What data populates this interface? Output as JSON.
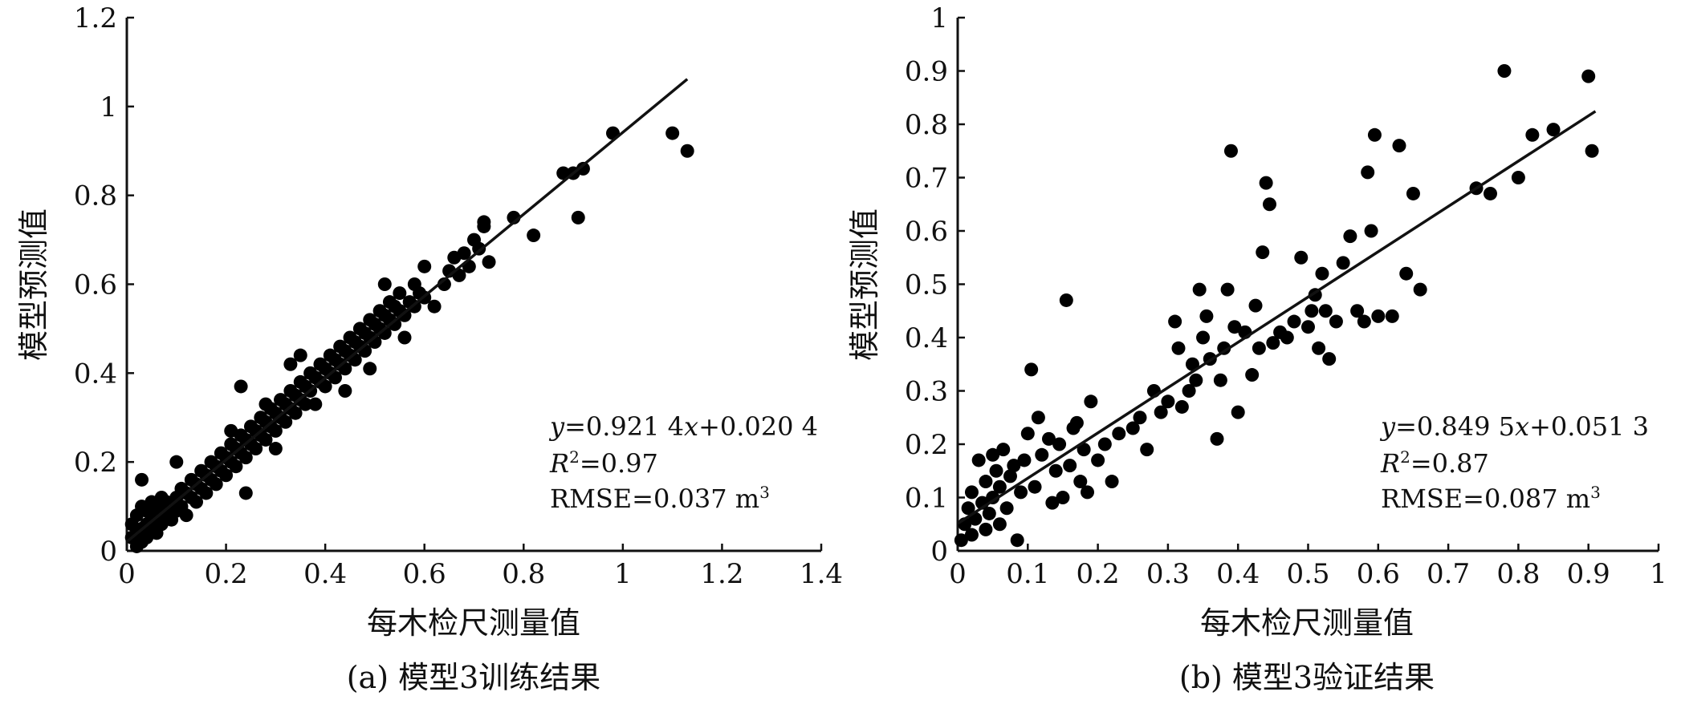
{
  "chart_data": [
    {
      "type": "scatter",
      "caption": "(a) 模型3训练结果",
      "xlabel": "每木检尺测量值",
      "ylabel": "模型预测值",
      "xlim": [
        0,
        1.4
      ],
      "ylim": [
        0,
        1.2
      ],
      "xticks": [
        "0",
        "0.2",
        "0.4",
        "0.6",
        "0.8",
        "1",
        "1.2",
        "1.4"
      ],
      "yticks": [
        "0",
        "0.2",
        "0.4",
        "0.6",
        "0.8",
        "1",
        "1.2"
      ],
      "fit": {
        "slope": 0.9214,
        "intercept": 0.0204,
        "x_range": [
          0,
          1.13
        ]
      },
      "annotation": {
        "eq_prefix": "y",
        "eq_mid": "=0.921 4",
        "eq_x": "x",
        "eq_tail": "+0.020 4",
        "r2_label": "R",
        "r2_sup": "2",
        "r2_value": "=0.97",
        "rmse": "RMSE=0.037 m",
        "rmse_sup": "3"
      },
      "points": [
        [
          0.01,
          0.03
        ],
        [
          0.01,
          0.06
        ],
        [
          0.02,
          0.01
        ],
        [
          0.02,
          0.04
        ],
        [
          0.02,
          0.08
        ],
        [
          0.03,
          0.02
        ],
        [
          0.03,
          0.05
        ],
        [
          0.03,
          0.1
        ],
        [
          0.03,
          0.16
        ],
        [
          0.04,
          0.03
        ],
        [
          0.04,
          0.06
        ],
        [
          0.04,
          0.09
        ],
        [
          0.05,
          0.05
        ],
        [
          0.05,
          0.08
        ],
        [
          0.05,
          0.11
        ],
        [
          0.06,
          0.04
        ],
        [
          0.06,
          0.07
        ],
        [
          0.06,
          0.1
        ],
        [
          0.07,
          0.06
        ],
        [
          0.07,
          0.09
        ],
        [
          0.07,
          0.12
        ],
        [
          0.08,
          0.08
        ],
        [
          0.08,
          0.11
        ],
        [
          0.09,
          0.07
        ],
        [
          0.09,
          0.1
        ],
        [
          0.1,
          0.09
        ],
        [
          0.1,
          0.12
        ],
        [
          0.1,
          0.2
        ],
        [
          0.11,
          0.1
        ],
        [
          0.11,
          0.14
        ],
        [
          0.12,
          0.08
        ],
        [
          0.12,
          0.13
        ],
        [
          0.13,
          0.12
        ],
        [
          0.13,
          0.16
        ],
        [
          0.14,
          0.11
        ],
        [
          0.14,
          0.15
        ],
        [
          0.15,
          0.14
        ],
        [
          0.15,
          0.18
        ],
        [
          0.16,
          0.13
        ],
        [
          0.16,
          0.17
        ],
        [
          0.17,
          0.16
        ],
        [
          0.17,
          0.2
        ],
        [
          0.18,
          0.15
        ],
        [
          0.18,
          0.19
        ],
        [
          0.19,
          0.18
        ],
        [
          0.19,
          0.22
        ],
        [
          0.2,
          0.17
        ],
        [
          0.2,
          0.21
        ],
        [
          0.21,
          0.2
        ],
        [
          0.21,
          0.24
        ],
        [
          0.21,
          0.27
        ],
        [
          0.22,
          0.19
        ],
        [
          0.22,
          0.23
        ],
        [
          0.23,
          0.22
        ],
        [
          0.23,
          0.26
        ],
        [
          0.23,
          0.37
        ],
        [
          0.24,
          0.13
        ],
        [
          0.24,
          0.21
        ],
        [
          0.24,
          0.25
        ],
        [
          0.25,
          0.24
        ],
        [
          0.25,
          0.28
        ],
        [
          0.26,
          0.23
        ],
        [
          0.26,
          0.27
        ],
        [
          0.27,
          0.26
        ],
        [
          0.27,
          0.3
        ],
        [
          0.28,
          0.25
        ],
        [
          0.28,
          0.29
        ],
        [
          0.28,
          0.33
        ],
        [
          0.29,
          0.28
        ],
        [
          0.29,
          0.32
        ],
        [
          0.3,
          0.23
        ],
        [
          0.3,
          0.27
        ],
        [
          0.3,
          0.31
        ],
        [
          0.31,
          0.3
        ],
        [
          0.31,
          0.34
        ],
        [
          0.32,
          0.29
        ],
        [
          0.32,
          0.33
        ],
        [
          0.33,
          0.32
        ],
        [
          0.33,
          0.36
        ],
        [
          0.33,
          0.42
        ],
        [
          0.34,
          0.31
        ],
        [
          0.34,
          0.35
        ],
        [
          0.35,
          0.34
        ],
        [
          0.35,
          0.38
        ],
        [
          0.35,
          0.44
        ],
        [
          0.36,
          0.33
        ],
        [
          0.36,
          0.37
        ],
        [
          0.37,
          0.36
        ],
        [
          0.37,
          0.4
        ],
        [
          0.38,
          0.33
        ],
        [
          0.38,
          0.39
        ],
        [
          0.39,
          0.38
        ],
        [
          0.39,
          0.42
        ],
        [
          0.4,
          0.37
        ],
        [
          0.4,
          0.41
        ],
        [
          0.41,
          0.4
        ],
        [
          0.41,
          0.44
        ],
        [
          0.42,
          0.39
        ],
        [
          0.42,
          0.43
        ],
        [
          0.43,
          0.42
        ],
        [
          0.43,
          0.46
        ],
        [
          0.44,
          0.36
        ],
        [
          0.44,
          0.41
        ],
        [
          0.44,
          0.45
        ],
        [
          0.45,
          0.44
        ],
        [
          0.45,
          0.48
        ],
        [
          0.46,
          0.43
        ],
        [
          0.46,
          0.47
        ],
        [
          0.47,
          0.46
        ],
        [
          0.47,
          0.5
        ],
        [
          0.48,
          0.45
        ],
        [
          0.48,
          0.49
        ],
        [
          0.49,
          0.41
        ],
        [
          0.49,
          0.48
        ],
        [
          0.49,
          0.52
        ],
        [
          0.5,
          0.47
        ],
        [
          0.5,
          0.51
        ],
        [
          0.51,
          0.5
        ],
        [
          0.51,
          0.54
        ],
        [
          0.52,
          0.49
        ],
        [
          0.52,
          0.53
        ],
        [
          0.52,
          0.6
        ],
        [
          0.53,
          0.52
        ],
        [
          0.53,
          0.56
        ],
        [
          0.54,
          0.51
        ],
        [
          0.54,
          0.55
        ],
        [
          0.55,
          0.54
        ],
        [
          0.55,
          0.58
        ],
        [
          0.56,
          0.48
        ],
        [
          0.56,
          0.53
        ],
        [
          0.57,
          0.56
        ],
        [
          0.58,
          0.55
        ],
        [
          0.58,
          0.6
        ],
        [
          0.59,
          0.58
        ],
        [
          0.6,
          0.57
        ],
        [
          0.6,
          0.64
        ],
        [
          0.62,
          0.55
        ],
        [
          0.64,
          0.6
        ],
        [
          0.65,
          0.63
        ],
        [
          0.66,
          0.66
        ],
        [
          0.67,
          0.62
        ],
        [
          0.68,
          0.67
        ],
        [
          0.69,
          0.64
        ],
        [
          0.7,
          0.7
        ],
        [
          0.71,
          0.68
        ],
        [
          0.72,
          0.73
        ],
        [
          0.72,
          0.74
        ],
        [
          0.73,
          0.65
        ],
        [
          0.78,
          0.75
        ],
        [
          0.82,
          0.71
        ],
        [
          0.88,
          0.85
        ],
        [
          0.9,
          0.85
        ],
        [
          0.91,
          0.75
        ],
        [
          0.92,
          0.86
        ],
        [
          0.98,
          0.94
        ],
        [
          1.1,
          0.94
        ],
        [
          1.13,
          0.9
        ]
      ]
    },
    {
      "type": "scatter",
      "caption": "(b) 模型3验证结果",
      "xlabel": "每木检尺测量值",
      "ylabel": "模型预测值",
      "xlim": [
        0,
        1
      ],
      "ylim": [
        0,
        1
      ],
      "xticks": [
        "0",
        "0.1",
        "0.2",
        "0.3",
        "0.4",
        "0.5",
        "0.6",
        "0.7",
        "0.8",
        "0.9",
        "1"
      ],
      "yticks": [
        "0",
        "0.1",
        "0.2",
        "0.3",
        "0.4",
        "0.5",
        "0.6",
        "0.7",
        "0.8",
        "0.9",
        "1"
      ],
      "fit": {
        "slope": 0.8495,
        "intercept": 0.0513,
        "x_range": [
          0,
          0.91
        ]
      },
      "annotation": {
        "eq_prefix": "y",
        "eq_mid": "=0.849 5",
        "eq_x": "x",
        "eq_tail": "+0.051 3",
        "r2_label": "R",
        "r2_sup": "2",
        "r2_value": "=0.87",
        "rmse": "RMSE=0.087 m",
        "rmse_sup": "3"
      },
      "points": [
        [
          0.005,
          0.02
        ],
        [
          0.01,
          0.05
        ],
        [
          0.015,
          0.08
        ],
        [
          0.02,
          0.03
        ],
        [
          0.02,
          0.11
        ],
        [
          0.025,
          0.06
        ],
        [
          0.03,
          0.17
        ],
        [
          0.035,
          0.09
        ],
        [
          0.04,
          0.04
        ],
        [
          0.04,
          0.13
        ],
        [
          0.045,
          0.07
        ],
        [
          0.05,
          0.18
        ],
        [
          0.05,
          0.1
        ],
        [
          0.055,
          0.15
        ],
        [
          0.06,
          0.05
        ],
        [
          0.06,
          0.12
        ],
        [
          0.065,
          0.19
        ],
        [
          0.07,
          0.08
        ],
        [
          0.075,
          0.14
        ],
        [
          0.08,
          0.16
        ],
        [
          0.085,
          0.02
        ],
        [
          0.09,
          0.11
        ],
        [
          0.095,
          0.17
        ],
        [
          0.1,
          0.22
        ],
        [
          0.105,
          0.34
        ],
        [
          0.11,
          0.12
        ],
        [
          0.115,
          0.25
        ],
        [
          0.12,
          0.18
        ],
        [
          0.13,
          0.21
        ],
        [
          0.135,
          0.09
        ],
        [
          0.14,
          0.15
        ],
        [
          0.145,
          0.2
        ],
        [
          0.15,
          0.1
        ],
        [
          0.155,
          0.47
        ],
        [
          0.16,
          0.16
        ],
        [
          0.165,
          0.23
        ],
        [
          0.17,
          0.24
        ],
        [
          0.175,
          0.13
        ],
        [
          0.18,
          0.19
        ],
        [
          0.185,
          0.11
        ],
        [
          0.19,
          0.28
        ],
        [
          0.2,
          0.17
        ],
        [
          0.21,
          0.2
        ],
        [
          0.22,
          0.13
        ],
        [
          0.23,
          0.22
        ],
        [
          0.25,
          0.23
        ],
        [
          0.26,
          0.25
        ],
        [
          0.27,
          0.19
        ],
        [
          0.28,
          0.3
        ],
        [
          0.29,
          0.26
        ],
        [
          0.3,
          0.28
        ],
        [
          0.31,
          0.43
        ],
        [
          0.315,
          0.38
        ],
        [
          0.32,
          0.27
        ],
        [
          0.33,
          0.3
        ],
        [
          0.335,
          0.35
        ],
        [
          0.34,
          0.32
        ],
        [
          0.345,
          0.49
        ],
        [
          0.35,
          0.4
        ],
        [
          0.355,
          0.44
        ],
        [
          0.36,
          0.36
        ],
        [
          0.37,
          0.21
        ],
        [
          0.375,
          0.32
        ],
        [
          0.38,
          0.38
        ],
        [
          0.385,
          0.49
        ],
        [
          0.39,
          0.75
        ],
        [
          0.395,
          0.42
        ],
        [
          0.4,
          0.26
        ],
        [
          0.41,
          0.41
        ],
        [
          0.42,
          0.33
        ],
        [
          0.425,
          0.46
        ],
        [
          0.43,
          0.38
        ],
        [
          0.435,
          0.56
        ],
        [
          0.44,
          0.69
        ],
        [
          0.445,
          0.65
        ],
        [
          0.45,
          0.39
        ],
        [
          0.46,
          0.41
        ],
        [
          0.47,
          0.4
        ],
        [
          0.48,
          0.43
        ],
        [
          0.49,
          0.55
        ],
        [
          0.5,
          0.42
        ],
        [
          0.505,
          0.45
        ],
        [
          0.51,
          0.48
        ],
        [
          0.515,
          0.38
        ],
        [
          0.52,
          0.52
        ],
        [
          0.525,
          0.45
        ],
        [
          0.53,
          0.36
        ],
        [
          0.54,
          0.43
        ],
        [
          0.55,
          0.54
        ],
        [
          0.56,
          0.59
        ],
        [
          0.57,
          0.45
        ],
        [
          0.58,
          0.43
        ],
        [
          0.585,
          0.71
        ],
        [
          0.59,
          0.6
        ],
        [
          0.595,
          0.78
        ],
        [
          0.6,
          0.44
        ],
        [
          0.62,
          0.44
        ],
        [
          0.63,
          0.76
        ],
        [
          0.64,
          0.52
        ],
        [
          0.65,
          0.67
        ],
        [
          0.66,
          0.49
        ],
        [
          0.74,
          0.68
        ],
        [
          0.76,
          0.67
        ],
        [
          0.78,
          0.9
        ],
        [
          0.8,
          0.7
        ],
        [
          0.82,
          0.78
        ],
        [
          0.85,
          0.79
        ],
        [
          0.9,
          0.89
        ],
        [
          0.905,
          0.75
        ]
      ]
    }
  ]
}
